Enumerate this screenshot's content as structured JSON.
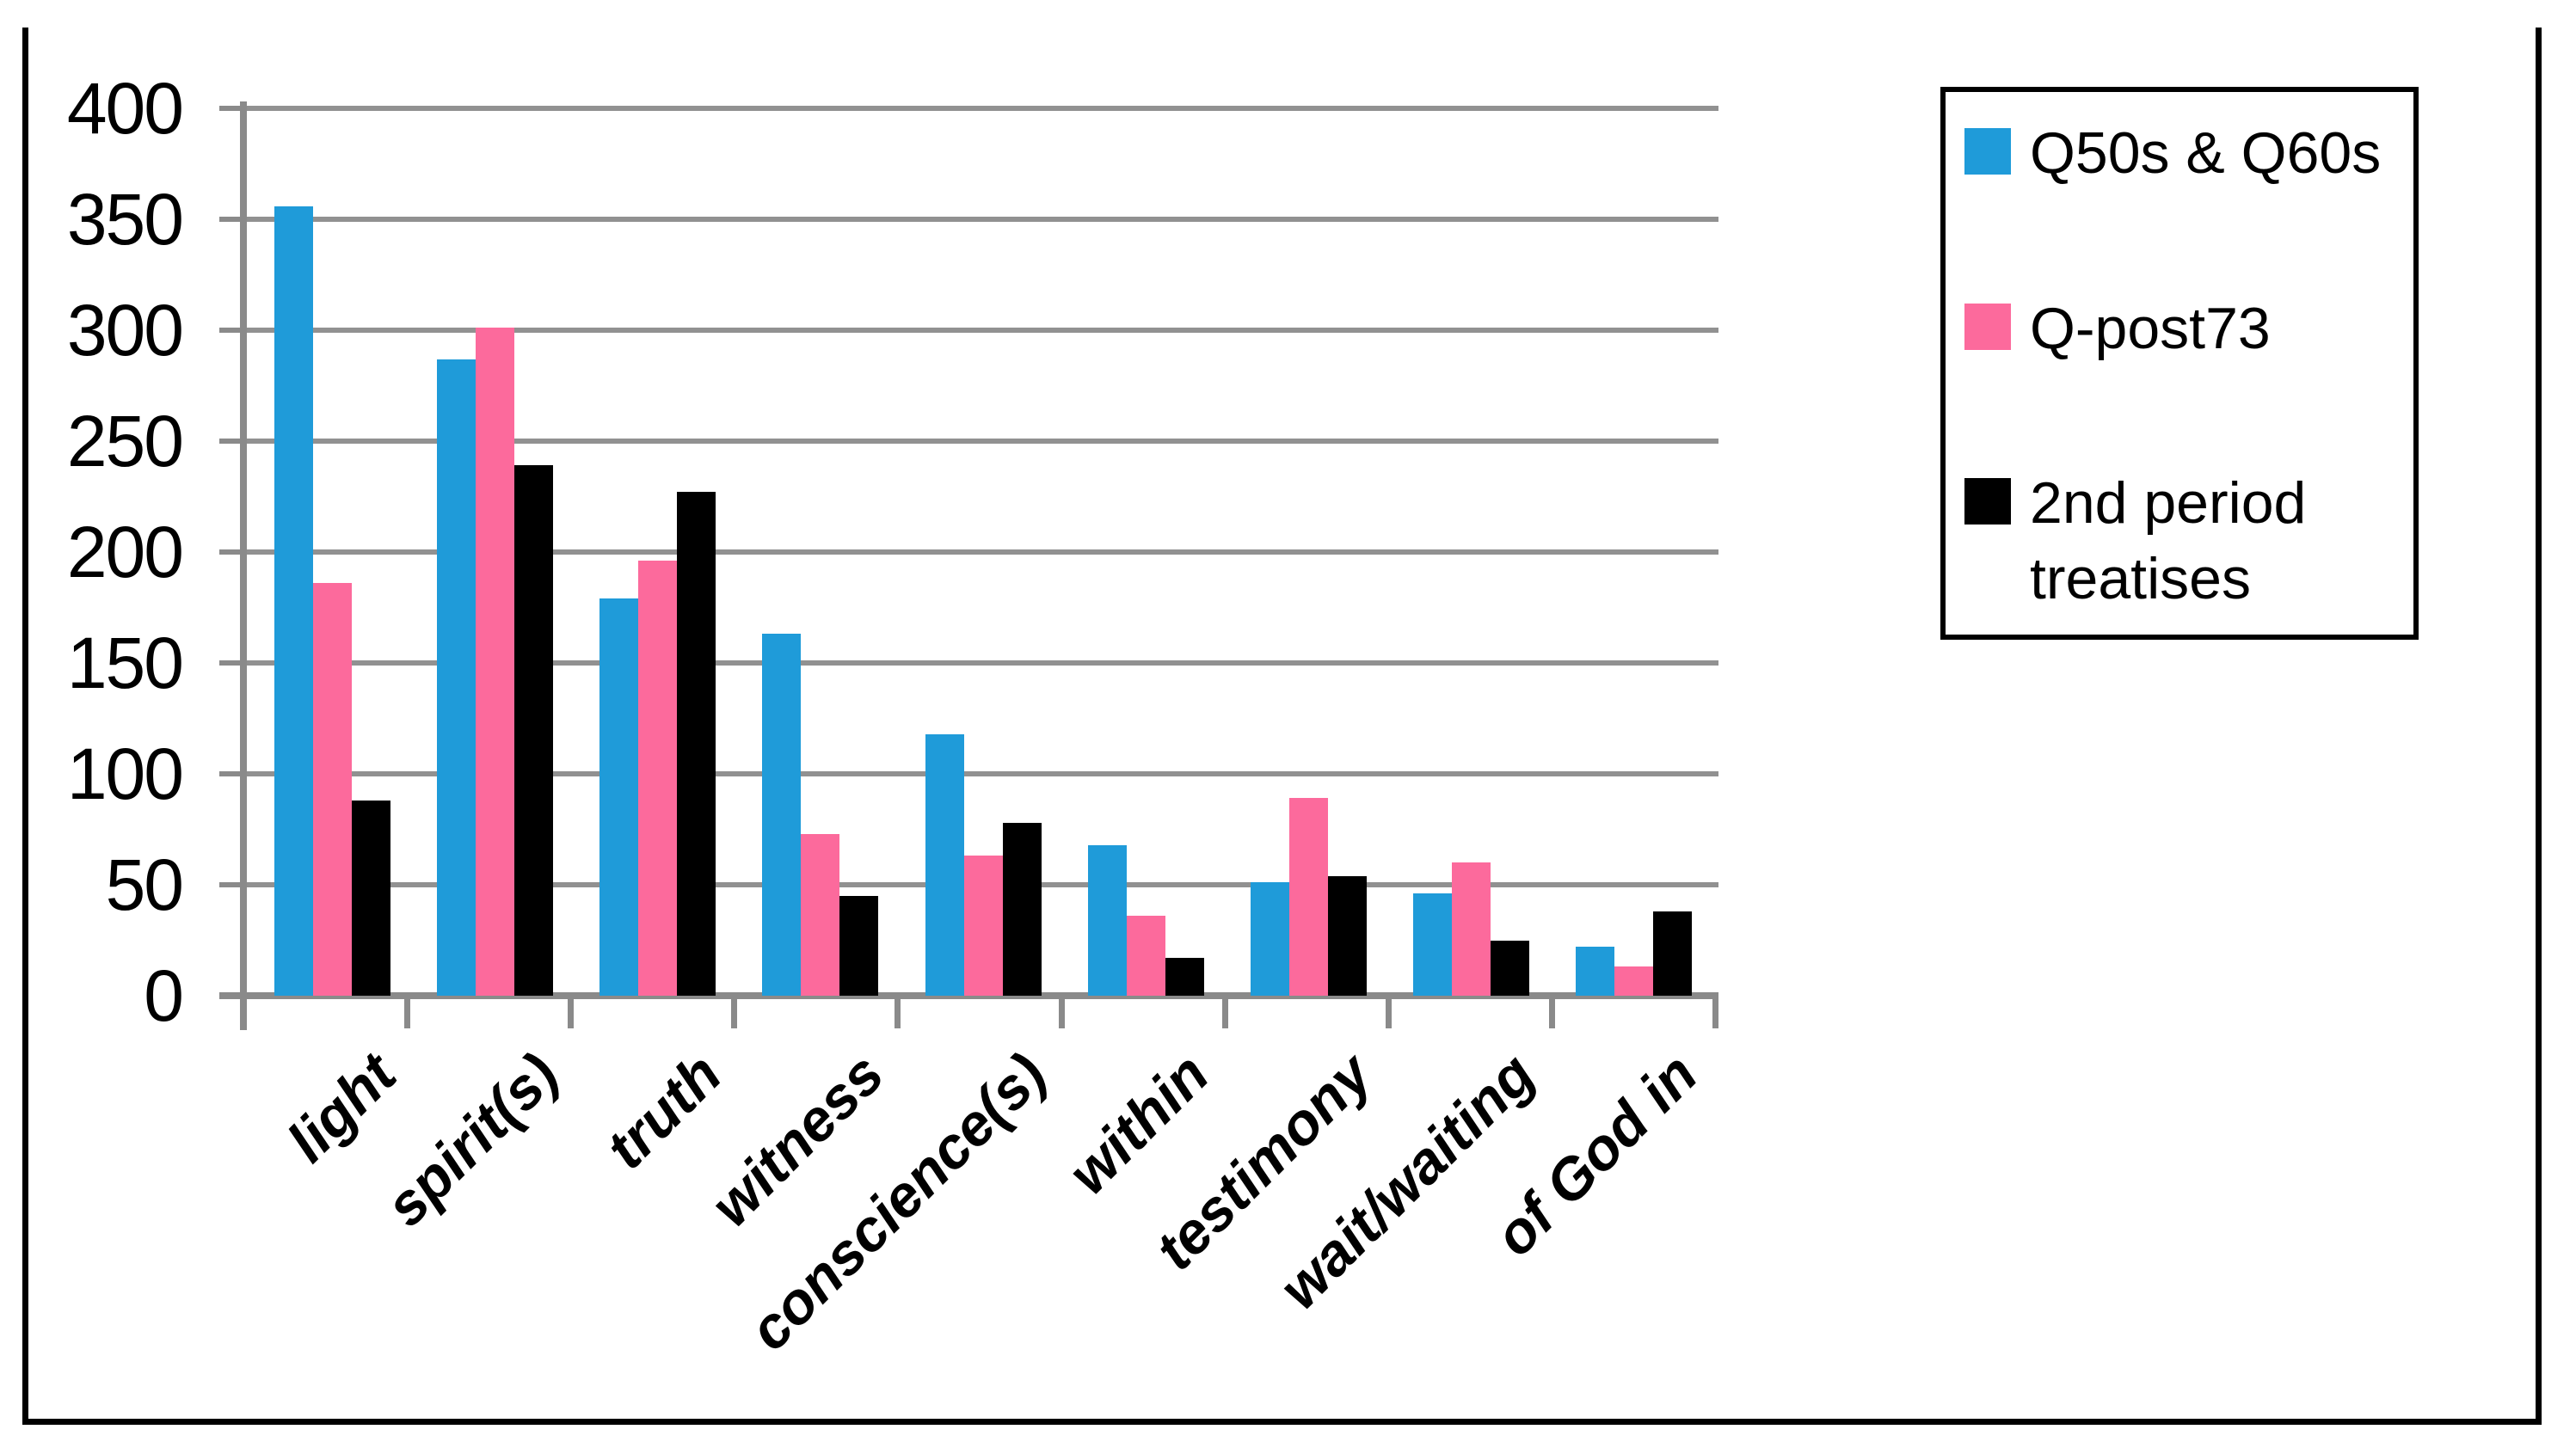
{
  "chart_data": {
    "type": "bar",
    "title": "",
    "xlabel": "",
    "ylabel": "",
    "categories": [
      "light",
      "spirit(s)",
      "truth",
      "witness",
      "conscience(s)",
      "within",
      "testimony",
      "wait/waiting",
      "of God in"
    ],
    "series": [
      {
        "name": "Q50s & Q60s",
        "color": "#1F9BD9",
        "values": [
          356,
          287,
          179,
          163,
          118,
          68,
          51,
          46,
          22
        ]
      },
      {
        "name": "Q-post73",
        "color": "#FC6A9C",
        "values": [
          186,
          301,
          196,
          73,
          63,
          36,
          89,
          60,
          13
        ]
      },
      {
        "name": "2nd period treatises",
        "color": "#000000",
        "values": [
          88,
          239,
          227,
          45,
          78,
          17,
          54,
          25,
          38
        ]
      }
    ],
    "ylim": [
      0,
      400
    ],
    "ytick_step": 50,
    "yticks": [
      "400",
      "350",
      "300",
      "250",
      "200",
      "150",
      "100",
      "50",
      "0"
    ],
    "grid": "horizontal",
    "gridline_color": "#919191",
    "axis_color": "#8A8A8A",
    "frame_color": "#000000",
    "legend_position": "top-right",
    "x_labels_rotation_deg": -45
  },
  "legend": {
    "items": [
      {
        "label": "Q50s & Q60s",
        "color": "#1F9BD9"
      },
      {
        "label": "Q-post73",
        "color": "#FC6A9C"
      },
      {
        "label": "2nd period treatises",
        "color": "#000000"
      }
    ]
  }
}
